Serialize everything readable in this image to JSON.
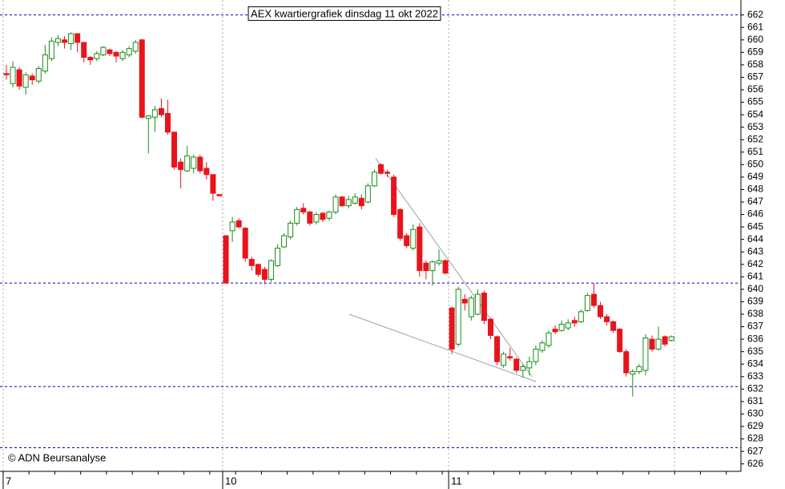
{
  "chart_data": {
    "type": "candlestick",
    "title": "AEX kwartiergrafiek dinsdag 11 okt 2022",
    "source": "© ADN Beursanalyse",
    "up_color": "#1a8c1a",
    "down_color": "#e8141c",
    "categories": [
      "7",
      null,
      null,
      null,
      null,
      null,
      null,
      null,
      null,
      null,
      null,
      null,
      null,
      null,
      null,
      null,
      null,
      null,
      null,
      null,
      null,
      null,
      null,
      null,
      null,
      null,
      null,
      null,
      null,
      null,
      null,
      null,
      null,
      null,
      "10",
      null,
      null,
      null,
      null,
      null,
      null,
      null,
      null,
      null,
      null,
      null,
      null,
      null,
      null,
      null,
      null,
      null,
      null,
      null,
      null,
      null,
      null,
      null,
      null,
      null,
      null,
      null,
      null,
      null,
      null,
      null,
      null,
      null,
      null,
      "11",
      null,
      null,
      null,
      null,
      null,
      null,
      null,
      null,
      null,
      null,
      null,
      null,
      null,
      null,
      null,
      null,
      null,
      null,
      null,
      null,
      null,
      null,
      null,
      null,
      null,
      null,
      null,
      null,
      null,
      null,
      null,
      null,
      null,
      null
    ],
    "open": [
      657.3,
      656.5,
      657.6,
      656.2,
      657.1,
      656.7,
      657.5,
      658.5,
      659.8,
      660,
      659.7,
      660.5,
      659.8,
      658.6,
      658.5,
      658.8,
      659.2,
      659,
      658.5,
      658.8,
      659.1,
      660,
      653.7,
      653.8,
      654.5,
      654.1,
      652.6,
      650.2,
      649.5,
      649.7,
      650.6,
      649.7,
      649.2,
      647.6,
      644.3,
      644.7,
      645.5,
      644.9,
      642.4,
      642,
      641.6,
      640.8,
      641.9,
      643.4,
      644.2,
      645.3,
      646.5,
      646.2,
      645.4,
      646.1,
      645.7,
      646.2,
      647.4,
      646.7,
      646.9,
      647.3,
      647,
      648.3,
      650,
      649.4,
      649,
      646.4,
      644.3,
      643.3,
      645,
      642.1,
      641.5,
      642.1,
      642.3,
      638.5,
      635.6,
      639.2,
      637.8,
      638,
      639.7,
      637.6,
      636.2,
      633.9,
      634.6,
      634.4,
      633.5,
      633.7,
      634.2,
      635.1,
      635.5,
      636.8,
      636.7,
      636.9,
      637.5,
      637.4,
      638.3,
      639.6,
      638.7,
      637.8,
      637.4,
      636.8,
      635,
      633.2,
      633.4,
      633.5,
      636,
      635.2,
      636.2,
      635.9
    ],
    "high": [
      658,
      658.3,
      657.8,
      657.4,
      657.3,
      657.9,
      659.6,
      660.2,
      660.4,
      660.3,
      660.6,
      660.5,
      659.8,
      658.7,
      659.1,
      659.5,
      659.3,
      659.1,
      659.2,
      659.5,
      660,
      660.1,
      654,
      654.7,
      655.3,
      655.2,
      652.6,
      650.5,
      651.5,
      650.8,
      650.8,
      650.2,
      649.2,
      647.6,
      644.3,
      645.8,
      645.7,
      645,
      642.6,
      642,
      641.8,
      642.4,
      643.6,
      644.5,
      645.5,
      646.6,
      646.9,
      646.3,
      646.2,
      646.2,
      646.3,
      647.6,
      647.5,
      647.5,
      647.7,
      647.6,
      648.5,
      649.6,
      650.1,
      649.6,
      649.2,
      646.5,
      644.5,
      645.2,
      645.3,
      642.3,
      642.3,
      643.2,
      642.4,
      638.6,
      640.2,
      639.6,
      639.5,
      640,
      639.9,
      637.7,
      636.3,
      635,
      635.3,
      634.5,
      634,
      634.6,
      635.5,
      635.9,
      636.7,
      637.1,
      637.5,
      637.6,
      637.8,
      638.4,
      639.7,
      640.5,
      639,
      638,
      637.5,
      636.9,
      635.2,
      633.6,
      634,
      636.4,
      636.3,
      637,
      636.3,
      636.3
    ],
    "low": [
      656.8,
      656.2,
      656,
      655.6,
      656.4,
      656.5,
      657.3,
      658.3,
      659.5,
      659.3,
      659.2,
      659,
      658.2,
      658,
      658.3,
      658.7,
      658.7,
      658.2,
      658.3,
      658.6,
      658.9,
      653.7,
      650.9,
      652.6,
      653.8,
      652.4,
      649.6,
      648.1,
      649.4,
      649.3,
      649.3,
      648.8,
      647.1,
      647.5,
      640.5,
      643.8,
      644.9,
      642.2,
      641.5,
      641,
      640.4,
      640.6,
      641.8,
      643.3,
      644,
      645.1,
      646,
      645.1,
      645.2,
      645.4,
      645.5,
      646,
      646.6,
      646.5,
      646.8,
      646.4,
      646.9,
      648.2,
      649.2,
      649,
      645.8,
      643.9,
      643.3,
      643.1,
      641,
      640.8,
      640.3,
      641.9,
      641.2,
      634.8,
      635.4,
      638.3,
      637.5,
      637.9,
      637.2,
      636,
      633.9,
      633.7,
      634.3,
      633.3,
      632.9,
      633.1,
      633.9,
      634.9,
      635.3,
      636.4,
      636.6,
      636.7,
      637,
      637.3,
      638.2,
      638.5,
      637.6,
      637.1,
      636.5,
      634.9,
      633,
      631.4,
      633.2,
      633.1,
      635,
      635.1,
      635.4,
      635.8
    ],
    "close": [
      657.2,
      657.8,
      656.3,
      657.2,
      656.8,
      657.7,
      658.8,
      659.9,
      660.1,
      659.8,
      660.5,
      659.8,
      658.6,
      658.4,
      658.9,
      659.4,
      658.9,
      658.7,
      659,
      659.3,
      659.8,
      653.8,
      653.9,
      654.4,
      654,
      652.6,
      649.8,
      649.6,
      650.7,
      650.6,
      649.5,
      649.2,
      647.7,
      647.5,
      640.5,
      645.4,
      645,
      642.5,
      641.9,
      641.2,
      640.8,
      642.3,
      643.3,
      644.3,
      645.3,
      646.4,
      646.2,
      645.3,
      646,
      645.6,
      646.2,
      647.4,
      646.7,
      647.2,
      647.4,
      646.7,
      648.3,
      649.4,
      649.3,
      649.3,
      646,
      644.1,
      643.5,
      644.8,
      641.5,
      641.5,
      642.2,
      642.3,
      641.3,
      635.2,
      640,
      638.9,
      639.3,
      639.6,
      637.5,
      636.3,
      634.2,
      634.8,
      634.5,
      633.5,
      633.8,
      634.2,
      635.2,
      635.7,
      636.5,
      636.6,
      637.2,
      637.3,
      637.3,
      638.2,
      639.5,
      638.7,
      637.8,
      637.4,
      636.7,
      635,
      633.3,
      633.4,
      633.8,
      636.1,
      635.2,
      636,
      635.6,
      636.2
    ],
    "hlines": [
      662,
      640.5,
      632.2,
      627.3
    ],
    "hline_color": "#0000c0",
    "trendlines": [
      {
        "x": [
          57.2,
          81.4
        ],
        "y": [
          650.5,
          633.0
        ]
      },
      {
        "x": [
          53.1,
          82.0
        ],
        "y": [
          638.0,
          632.6
        ]
      }
    ],
    "trendline_color": "#a0a0a0",
    "ylim": [
      625.4,
      663.2
    ],
    "yticks": [
      626,
      627,
      628,
      629,
      630,
      631,
      632,
      633,
      634,
      635,
      636,
      637,
      638,
      639,
      640,
      641,
      642,
      643,
      644,
      645,
      646,
      647,
      648,
      649,
      650,
      651,
      652,
      653,
      654,
      655,
      656,
      657,
      658,
      659,
      660,
      661,
      662
    ]
  }
}
